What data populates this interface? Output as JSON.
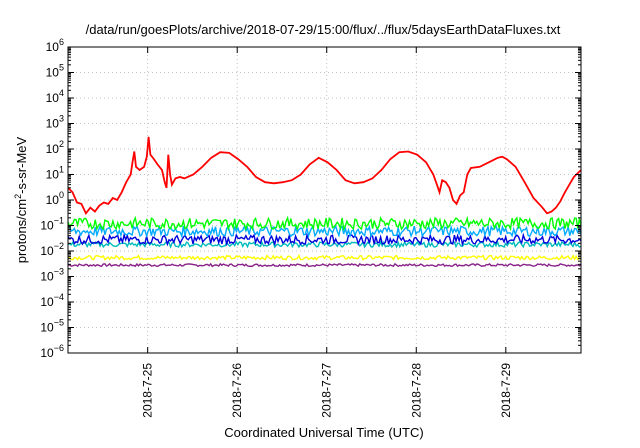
{
  "chart_data": {
    "type": "line",
    "title": "/data/run/goesPlots/archive/2018-07-29/15:00/flux/../flux/5daysEarthDataFluxes.txt",
    "xlabel": "Coordinated Universal Time (UTC)",
    "ylabel_parts": [
      "protons/cm",
      "2",
      "-s-sr-MeV"
    ],
    "y_scale": "log",
    "ylim": [
      1e-06,
      1000000.0
    ],
    "y_tick_exponents": [
      -6,
      -5,
      -4,
      -3,
      -2,
      -1,
      0,
      1,
      2,
      3,
      4,
      5,
      6
    ],
    "y_tick_base": "10",
    "xlim": [
      0,
      5.73
    ],
    "x_ticks": [
      {
        "value": 0.89,
        "label": "2018-7-25"
      },
      {
        "value": 1.89,
        "label": "2018-7-26"
      },
      {
        "value": 2.89,
        "label": "2018-7-27"
      },
      {
        "value": 3.89,
        "label": "2018-7-28"
      },
      {
        "value": 4.89,
        "label": "2018-7-29"
      }
    ],
    "grid": true,
    "series": [
      {
        "color": "#ff0000",
        "style": "line",
        "points": [
          [
            0.0,
            3.0
          ],
          [
            0.05,
            2.0
          ],
          [
            0.1,
            0.8
          ],
          [
            0.15,
            0.7
          ],
          [
            0.2,
            0.3
          ],
          [
            0.25,
            0.5
          ],
          [
            0.3,
            0.35
          ],
          [
            0.35,
            0.6
          ],
          [
            0.4,
            0.8
          ],
          [
            0.45,
            0.7
          ],
          [
            0.5,
            1.2
          ],
          [
            0.55,
            1.0
          ],
          [
            0.6,
            2.0
          ],
          [
            0.65,
            5.0
          ],
          [
            0.7,
            10.0
          ],
          [
            0.72,
            30.0
          ],
          [
            0.74,
            80.0
          ],
          [
            0.76,
            20.0
          ],
          [
            0.8,
            15.0
          ],
          [
            0.85,
            20.0
          ],
          [
            0.88,
            50.0
          ],
          [
            0.9,
            300.0
          ],
          [
            0.92,
            60.0
          ],
          [
            0.96,
            40.0
          ],
          [
            1.0,
            25.0
          ],
          [
            1.05,
            15.0
          ],
          [
            1.08,
            5.0
          ],
          [
            1.1,
            3.0
          ],
          [
            1.12,
            60.0
          ],
          [
            1.14,
            10.0
          ],
          [
            1.16,
            4.0
          ],
          [
            1.2,
            7.0
          ],
          [
            1.25,
            8.0
          ],
          [
            1.3,
            7.0
          ],
          [
            1.4,
            10.0
          ],
          [
            1.5,
            20.0
          ],
          [
            1.6,
            45.0
          ],
          [
            1.7,
            75.0
          ],
          [
            1.8,
            70.0
          ],
          [
            1.9,
            40.0
          ],
          [
            2.0,
            20.0
          ],
          [
            2.1,
            8.0
          ],
          [
            2.2,
            5.0
          ],
          [
            2.3,
            4.5
          ],
          [
            2.4,
            5.0
          ],
          [
            2.5,
            6.0
          ],
          [
            2.6,
            10.0
          ],
          [
            2.7,
            25.0
          ],
          [
            2.8,
            45.0
          ],
          [
            2.9,
            30.0
          ],
          [
            3.0,
            15.0
          ],
          [
            3.1,
            6.0
          ],
          [
            3.2,
            4.5
          ],
          [
            3.3,
            5.0
          ],
          [
            3.4,
            7.0
          ],
          [
            3.5,
            15.0
          ],
          [
            3.6,
            40.0
          ],
          [
            3.7,
            75.0
          ],
          [
            3.8,
            80.0
          ],
          [
            3.9,
            60.0
          ],
          [
            4.0,
            30.0
          ],
          [
            4.08,
            10.0
          ],
          [
            4.12,
            4.0
          ],
          [
            4.15,
            2.0
          ],
          [
            4.18,
            6.0
          ],
          [
            4.22,
            5.0
          ],
          [
            4.26,
            3.0
          ],
          [
            4.3,
            1.0
          ],
          [
            4.34,
            0.7
          ],
          [
            4.38,
            1.5
          ],
          [
            4.42,
            2.0
          ],
          [
            4.46,
            10.0
          ],
          [
            4.5,
            18.0
          ],
          [
            4.6,
            20.0
          ],
          [
            4.7,
            30.0
          ],
          [
            4.8,
            45.0
          ],
          [
            4.85,
            50.0
          ],
          [
            4.9,
            40.0
          ],
          [
            5.0,
            20.0
          ],
          [
            5.1,
            5.0
          ],
          [
            5.2,
            1.2
          ],
          [
            5.3,
            0.5
          ],
          [
            5.35,
            0.3
          ],
          [
            5.4,
            0.35
          ],
          [
            5.45,
            0.5
          ],
          [
            5.5,
            0.9
          ],
          [
            5.55,
            2.0
          ],
          [
            5.6,
            4.0
          ],
          [
            5.65,
            8.0
          ],
          [
            5.73,
            15.0
          ]
        ]
      },
      {
        "color": "#00ff00",
        "style": "band",
        "level": 0.12,
        "spread_dex": 0.22
      },
      {
        "color": "#00aaff",
        "style": "band",
        "level": 0.06,
        "spread_dex": 0.2
      },
      {
        "color": "#0000dd",
        "style": "band",
        "level": 0.028,
        "spread_dex": 0.18
      },
      {
        "color": "#00bbbb",
        "style": "band",
        "level": 0.018,
        "spread_dex": 0.1
      },
      {
        "color": "#ffff00",
        "style": "band",
        "level": 0.0055,
        "spread_dex": 0.08
      },
      {
        "color": "#882288",
        "style": "band",
        "level": 0.0028,
        "spread_dex": 0.05
      }
    ]
  }
}
